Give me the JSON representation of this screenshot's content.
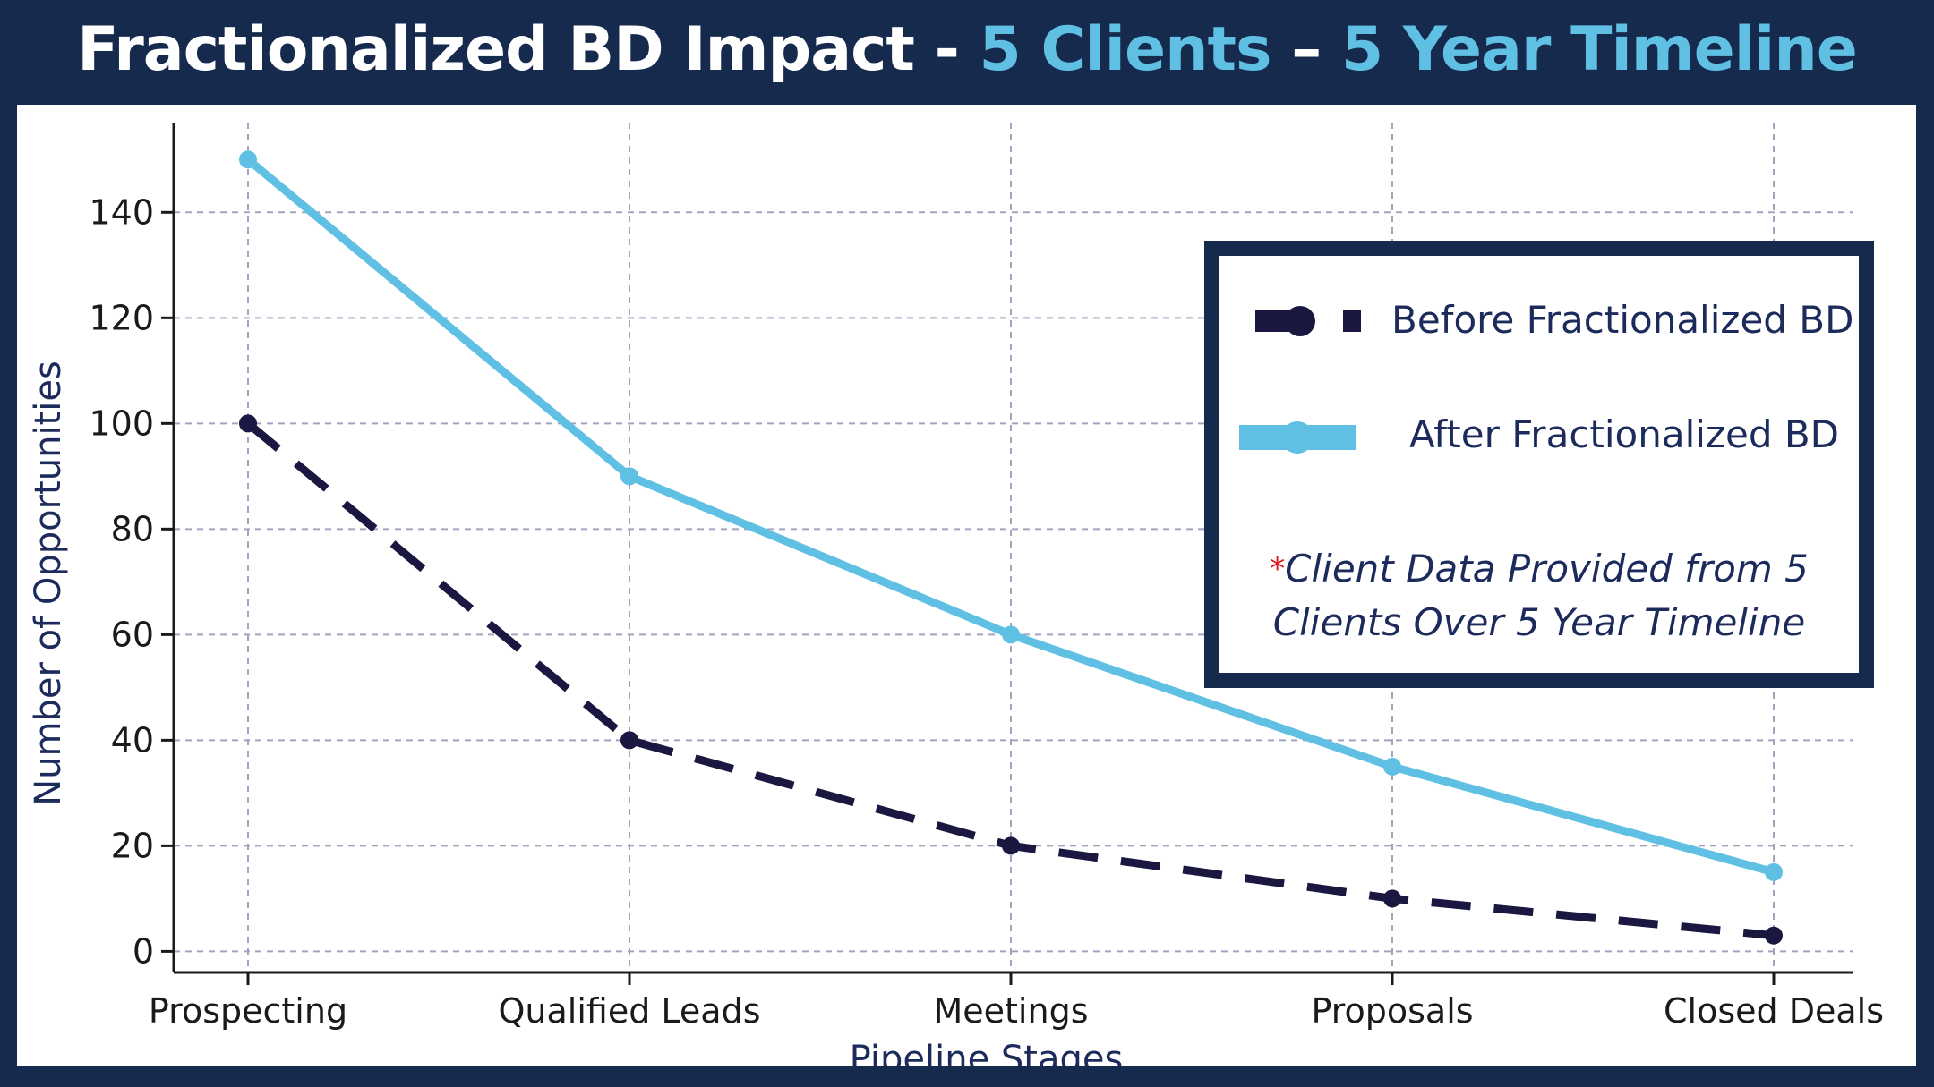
{
  "title": {
    "part1": "Fractionalized BD Impact - ",
    "part2": "5 Clients",
    "sep": " – ",
    "part3": "5 Year Timeline"
  },
  "colors": {
    "background": "#162a4d",
    "accent": "#5fc0e4",
    "before_series": "#1a1740",
    "after_series": "#5fc0e4",
    "note_asterisk": "#e0141b"
  },
  "note": {
    "asterisk": "*",
    "text": "Client Data Provided from 5 Clients Over 5 Year Timeline"
  },
  "chart_data": {
    "type": "line",
    "categories": [
      "Prospecting",
      "Qualified Leads",
      "Meetings",
      "Proposals",
      "Closed Deals"
    ],
    "series": [
      {
        "name": "Before Fractionalized BD",
        "values": [
          100,
          40,
          20,
          10,
          3
        ],
        "style": "dashed",
        "color": "#1a1740"
      },
      {
        "name": "After Fractionalized BD",
        "values": [
          150,
          90,
          60,
          35,
          15
        ],
        "style": "solid",
        "color": "#5fc0e4"
      }
    ],
    "xlabel": "Pipeline Stages",
    "ylabel": "Number of Opportunities",
    "ylim": [
      -4,
      157
    ],
    "yticks": [
      0,
      20,
      40,
      60,
      80,
      100,
      120,
      140
    ],
    "grid": true,
    "legend_position": "top-right"
  }
}
